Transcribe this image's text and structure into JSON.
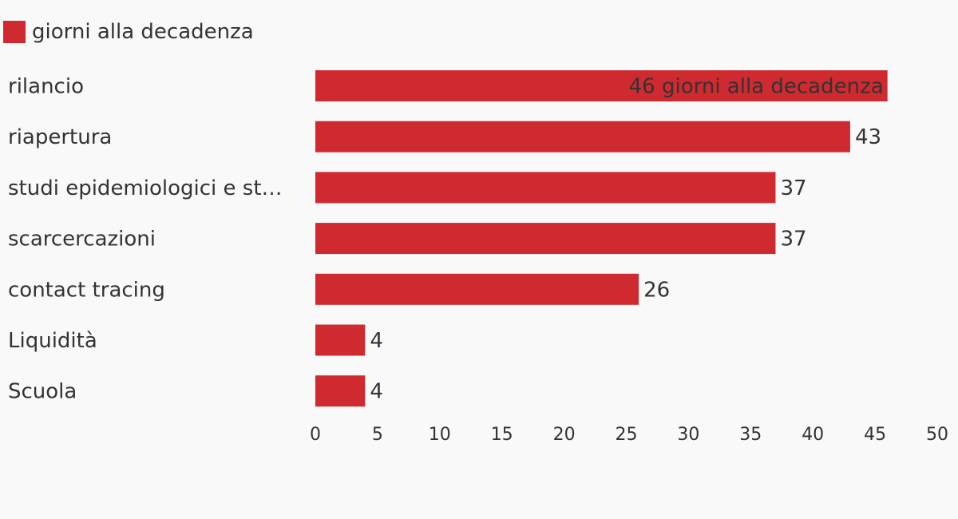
{
  "chart_data": {
    "type": "bar",
    "orientation": "horizontal",
    "categories": [
      "rilancio",
      "riapertura",
      "studi epidemiologici e st…",
      "scarcercazioni",
      "contact tracing",
      "Liquidità",
      "Scuola"
    ],
    "series": [
      {
        "name": "giorni alla decadenza",
        "values": [
          46,
          43,
          37,
          37,
          26,
          4,
          4
        ]
      }
    ],
    "data_labels": [
      "46 giorni alla decadenza",
      "43",
      "37",
      "37",
      "26",
      "4",
      "4"
    ],
    "x_ticks": [
      "0",
      "5",
      "10",
      "15",
      "20",
      "25",
      "30",
      "35",
      "40",
      "45",
      "50"
    ],
    "xlim": [
      0,
      50
    ],
    "title": "",
    "xlabel": "",
    "ylabel": "",
    "grid": false,
    "legend_position": "top-left",
    "bar_color": "#cf2a2f"
  }
}
